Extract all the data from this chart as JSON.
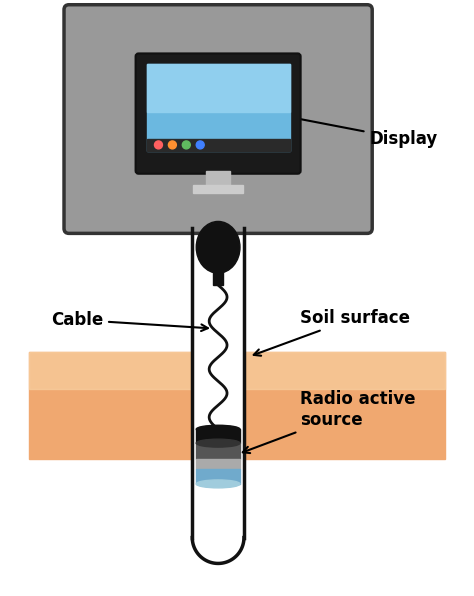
{
  "background_color": "#ffffff",
  "labels": {
    "display": "Display",
    "cable": "Cable",
    "soil_surface": "Soil surface",
    "radio_active": "Radio active\nsource"
  },
  "colors": {
    "soil_orange": "#F0A870",
    "soil_light": "#F8CFA0",
    "tube_outer": "#111111",
    "monitor_outer": "#333333",
    "monitor_bg": "#999999",
    "monitor_inner_bg": "#222222",
    "monitor_screen_blue": "#6BB8E0",
    "monitor_screen_light": "#90CFEE",
    "monitor_stand": "#AAAAAA",
    "cable_color": "#111111",
    "connector_black": "#111111",
    "src_black": "#111111",
    "src_darkgray": "#555555",
    "src_lightgray": "#AAAAAA",
    "src_blue": "#70AACC",
    "src_bluelight": "#A0CCDD",
    "arrow_color": "#111111",
    "label_color": "#000000"
  },
  "figsize": [
    4.74,
    5.96
  ],
  "dpi": 100
}
